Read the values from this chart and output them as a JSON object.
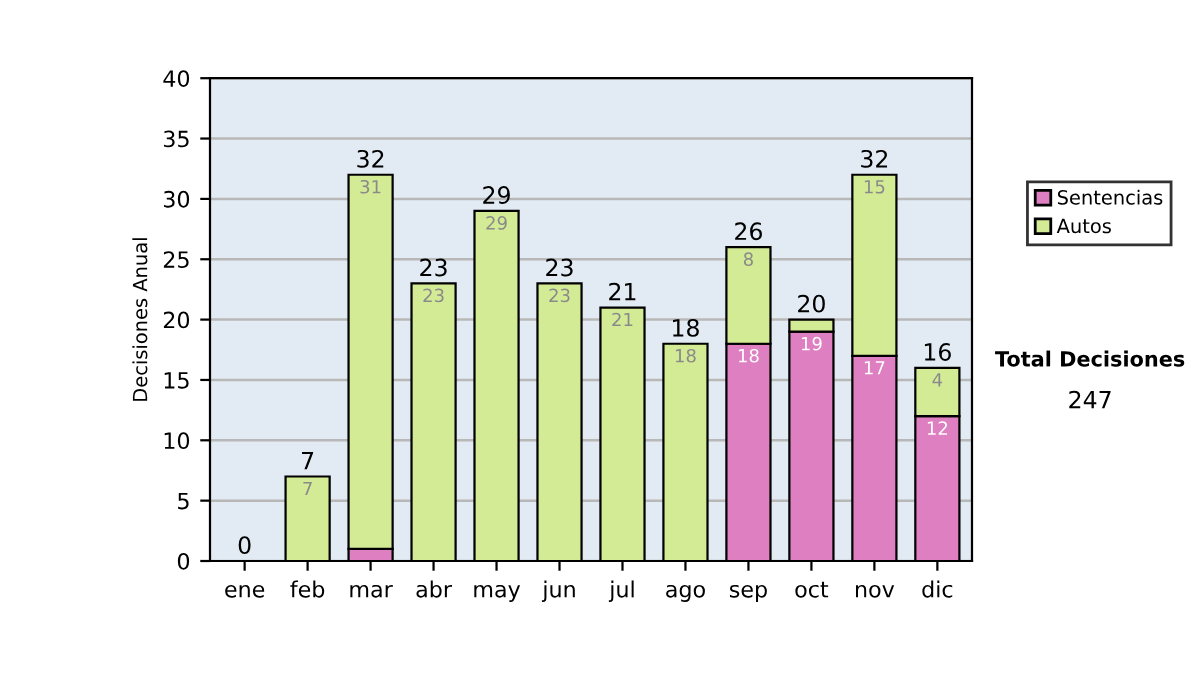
{
  "chart_data": {
    "type": "bar",
    "stacked": true,
    "ylabel": "Decisiones Anual",
    "categories": [
      "ene",
      "feb",
      "mar",
      "abr",
      "may",
      "jun",
      "jul",
      "ago",
      "sep",
      "oct",
      "nov",
      "dic"
    ],
    "series": [
      {
        "name": "Sentencias",
        "color": "#dd7fc0",
        "values": [
          0,
          0,
          1,
          0,
          0,
          0,
          0,
          0,
          18,
          19,
          17,
          12
        ],
        "value_labels": [
          null,
          null,
          null,
          null,
          null,
          null,
          null,
          null,
          "18",
          "19",
          "17",
          "12"
        ]
      },
      {
        "name": "Autos",
        "color": "#d4eb96",
        "values": [
          0,
          7,
          31,
          23,
          29,
          23,
          21,
          18,
          8,
          1,
          15,
          4
        ],
        "value_labels": [
          null,
          "7",
          "31",
          "23",
          "29",
          "23",
          "21",
          "18",
          "8",
          null,
          "15",
          "4"
        ]
      }
    ],
    "totals": [
      "0",
      "7",
      "32",
      "23",
      "29",
      "23",
      "21",
      "18",
      "26",
      "20",
      "32",
      "16"
    ],
    "ylim": [
      0,
      40
    ],
    "yticks": [
      0,
      5,
      10,
      15,
      20,
      25,
      30,
      35,
      40
    ],
    "grid": "y",
    "legend": "right",
    "annotations": [
      "Total Decisiones",
      "247"
    ]
  }
}
